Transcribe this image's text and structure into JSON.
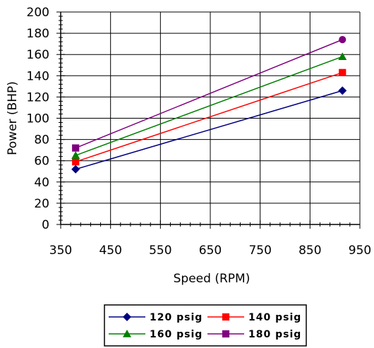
{
  "chart_data": {
    "type": "line",
    "xlabel": "Speed (RPM)",
    "ylabel": "Power (BHP)",
    "xlim": [
      350,
      950
    ],
    "ylim": [
      0,
      200
    ],
    "x_ticks": [
      "350",
      "450",
      "550",
      "650",
      "750",
      "850",
      "950"
    ],
    "y_ticks": [
      "0",
      "20",
      "40",
      "60",
      "80",
      "100",
      "120",
      "140",
      "160",
      "180",
      "200"
    ],
    "grid": true,
    "legend_position": "bottom",
    "series": [
      {
        "name": "120 psig",
        "color": "#000080",
        "marker": "diamond",
        "x": [
          380,
          915
        ],
        "y": [
          52,
          126
        ]
      },
      {
        "name": "140 psig",
        "color": "#ff0000",
        "marker": "square",
        "x": [
          380,
          915
        ],
        "y": [
          59,
          143
        ]
      },
      {
        "name": "160 psig",
        "color": "#008000",
        "marker": "triangle",
        "x": [
          380,
          915
        ],
        "y": [
          65,
          158
        ]
      },
      {
        "name": "180 psig",
        "color": "#800080",
        "marker": "square",
        "x": [
          380,
          915
        ],
        "y": [
          72,
          174
        ]
      }
    ]
  }
}
